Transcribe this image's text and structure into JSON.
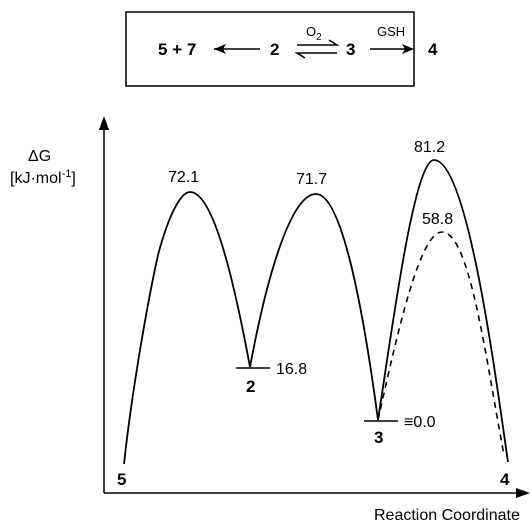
{
  "scheme": {
    "left_product": "5 + 7",
    "species_a": "2",
    "species_b": "3",
    "species_c": "4",
    "reagent_equilibrium": "O",
    "reagent_equilibrium_subscript": "2",
    "reagent_forward": "GSH"
  },
  "axes": {
    "y_label_line1": "ΔG",
    "y_label_line2_main": "[kJ·mol",
    "y_label_line2_sup": "-1",
    "y_label_line2_end": "]",
    "x_label": "Reaction Coordinate"
  },
  "energy_values": {
    "ts1": "72.1",
    "ts2": "71.7",
    "ts3": "81.2",
    "ts3_alt": "58.8",
    "int2": "16.8",
    "int3": "≡0.0"
  },
  "species_labels": {
    "start": "5",
    "int2": "2",
    "int3": "3",
    "end": "4"
  },
  "style": {
    "line_color": "#000000",
    "background": "#ffffff"
  }
}
